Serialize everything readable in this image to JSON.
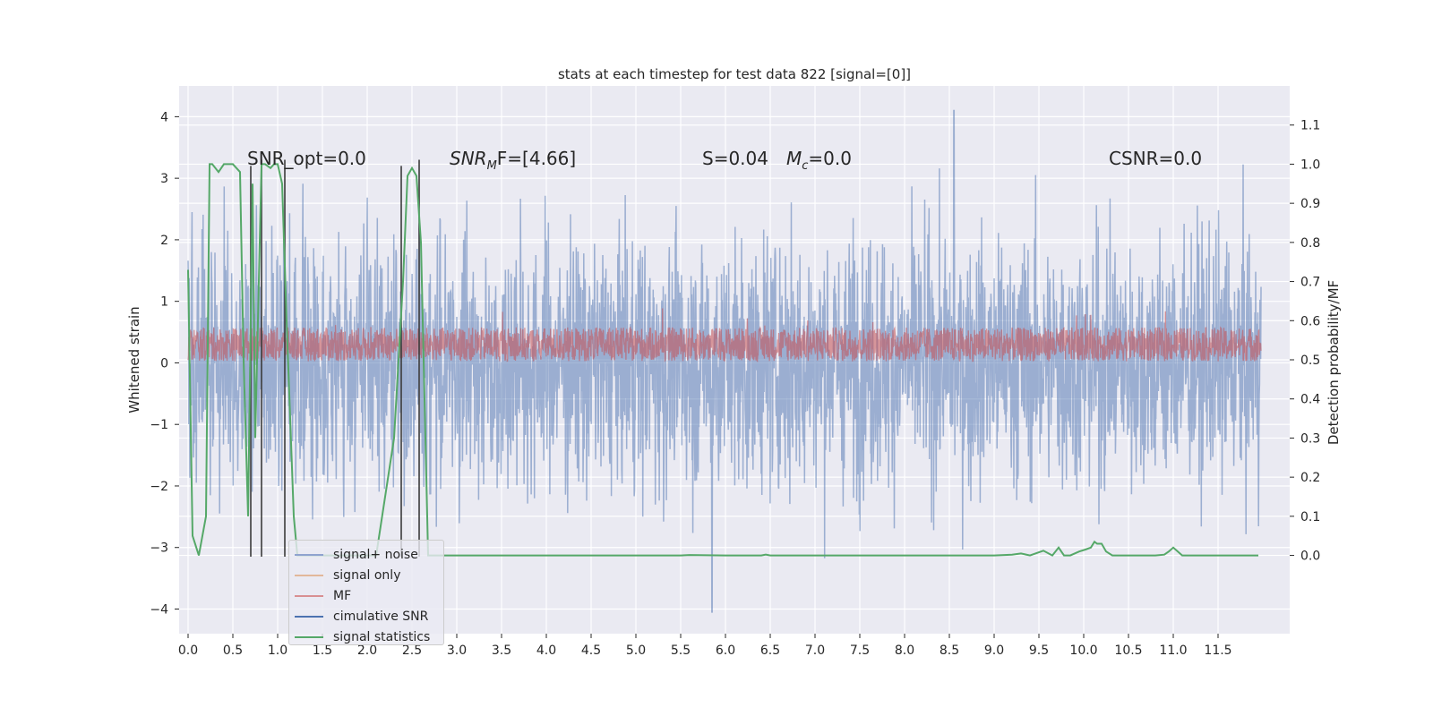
{
  "chart_data": {
    "type": "line",
    "title": "stats at each timestep for test data 822 [signal=[0]]",
    "ylabel": "Whitened strain",
    "ylabel_right": "Detection probability/MF",
    "xlim": [
      -0.1,
      12.3
    ],
    "ylim": [
      -4.4,
      4.5
    ],
    "ylim_right": [
      -0.2,
      1.2
    ],
    "x_ticks": [
      "0.0",
      "0.5",
      "1.0",
      "1.5",
      "2.0",
      "2.5",
      "3.0",
      "3.5",
      "4.0",
      "4.5",
      "5.0",
      "5.5",
      "6.0",
      "6.5",
      "7.0",
      "7.5",
      "8.0",
      "8.5",
      "9.0",
      "9.5",
      "10.0",
      "10.5",
      "11.0",
      "11.5"
    ],
    "y_ticks": [
      "4",
      "3",
      "2",
      "1",
      "0",
      "−1",
      "−2",
      "−3",
      "−4"
    ],
    "y_ticks_right": [
      "1.1",
      "1.0",
      "0.9",
      "0.8",
      "0.7",
      "0.6",
      "0.5",
      "0.4",
      "0.3",
      "0.2",
      "0.1",
      "0.0"
    ],
    "grid": true,
    "legend_placement": "lower left",
    "annotations": {
      "snr_opt": "SNR_opt=0.0",
      "snr_mf_prefix": "SNR",
      "snr_mf_sub": "M",
      "snr_mf_suffix": "F=[4.66]",
      "s_value": "S=0.04",
      "mc_prefix": "M",
      "mc_sub": "c",
      "mc_value": "=0.0",
      "csnr": "CSNR=0.0"
    },
    "series": [
      {
        "name": "signal+ noise",
        "color": "#4c72b0",
        "style": "dense noise about 0, roughly ±3, peaks near 4.1 at x≈8.55 and −4.05 at x≈5.85"
      },
      {
        "name": "signal only",
        "color": "#dd8452",
        "note": "not visible (zero)"
      },
      {
        "name": "MF",
        "color": "#c44e52",
        "style": "dense band between 0.0 and about 0.6, peak ≈1.0"
      },
      {
        "name": "cimulative SNR",
        "color": "#4c72b0",
        "note": "not visible"
      },
      {
        "name": "signal statistics",
        "color": "#55a868",
        "axis": "right",
        "x": [
          0.0,
          0.05,
          0.12,
          0.2,
          0.24,
          0.27,
          0.34,
          0.4,
          0.5,
          0.58,
          0.62,
          0.67,
          0.72,
          0.75,
          0.82,
          0.86,
          0.92,
          0.96,
          1.0,
          1.05,
          1.1,
          1.18,
          1.22,
          1.3,
          1.5,
          1.8,
          2.1,
          2.3,
          2.4,
          2.45,
          2.5,
          2.55,
          2.6,
          2.68,
          2.8,
          3.5,
          4.5,
          5.5,
          5.6,
          6.0,
          6.4,
          6.45,
          6.5,
          7.0,
          8.0,
          9.0,
          9.2,
          9.3,
          9.4,
          9.5,
          9.55,
          9.65,
          9.72,
          9.78,
          9.85,
          9.95,
          10.02,
          10.08,
          10.12,
          10.15,
          10.2,
          10.25,
          10.32,
          10.5,
          10.8,
          10.9,
          10.95,
          11.0,
          11.1,
          11.5,
          11.8,
          11.95
        ],
        "values": [
          0.73,
          0.05,
          0.0,
          0.1,
          1.0,
          1.0,
          0.98,
          1.0,
          1.0,
          0.98,
          0.5,
          0.1,
          0.95,
          0.3,
          1.0,
          1.0,
          0.99,
          1.0,
          1.0,
          0.95,
          0.6,
          0.1,
          0.0,
          0.0,
          0.0,
          0.0,
          0.0,
          0.3,
          0.7,
          0.97,
          0.99,
          0.97,
          0.8,
          0.0,
          0.0,
          0.0,
          0.0,
          0.0,
          0.001,
          0.0,
          0.0,
          0.002,
          0.0,
          0.0,
          0.0,
          0.0,
          0.002,
          0.005,
          0.0,
          0.008,
          0.012,
          0.0,
          0.02,
          0.0,
          0.0,
          0.01,
          0.015,
          0.02,
          0.035,
          0.03,
          0.03,
          0.01,
          0.0,
          0.0,
          0.0,
          0.002,
          0.01,
          0.02,
          0.0,
          0.0,
          0.0,
          0.0
        ]
      }
    ],
    "vertical_markers": [
      {
        "x": 0.7,
        "top": 3.2,
        "bottom": -3.15
      },
      {
        "x": 0.82,
        "top": 3.3,
        "bottom": -3.15
      },
      {
        "x": 1.08,
        "top": 3.3,
        "bottom": -3.15
      },
      {
        "x": 2.38,
        "top": 3.2,
        "bottom": -3.15
      },
      {
        "x": 2.58,
        "top": 3.3,
        "bottom": -3.15
      }
    ],
    "legend": [
      {
        "label": "signal+ noise",
        "color": "#8fa3cf"
      },
      {
        "label": "signal only",
        "color": "#e2b79a"
      },
      {
        "label": "MF",
        "color": "#d88f92"
      },
      {
        "label": "cimulative SNR",
        "color": "#4c72b0"
      },
      {
        "label": "signal statistics",
        "color": "#55a868"
      }
    ]
  }
}
